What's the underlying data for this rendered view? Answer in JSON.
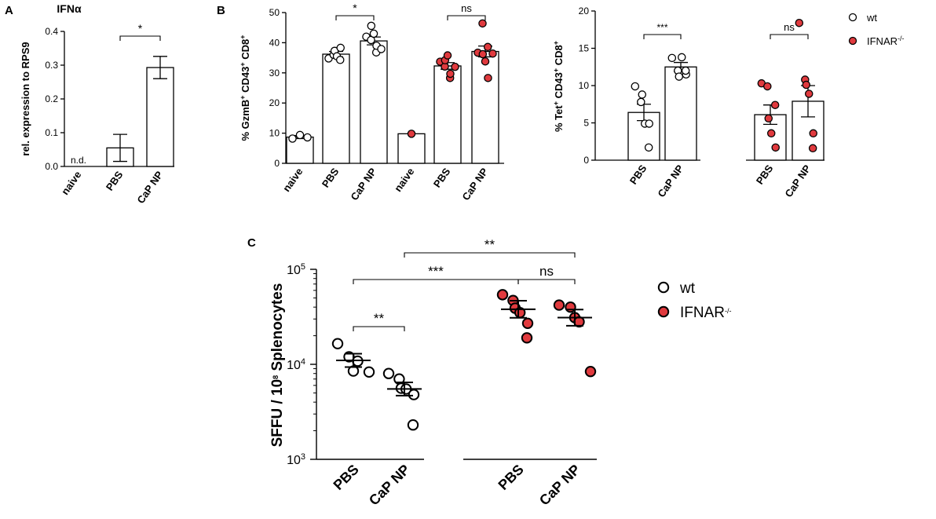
{
  "chart_data": [
    {
      "panel": "A",
      "type": "bar",
      "title": "IFNα",
      "ylabel": "rel. expression to RPS9",
      "ylim": [
        0,
        0.4
      ],
      "yticks": [
        "0.0",
        "0.1",
        "0.2",
        "0.3",
        "0.4"
      ],
      "categories": [
        "naive",
        "PBS",
        "CaP NP"
      ],
      "values": [
        null,
        0.055,
        0.293
      ],
      "errors": [
        null,
        0.04,
        0.033
      ],
      "annotations": [
        {
          "label": "n.d.",
          "at": "naive"
        }
      ],
      "significance": [
        {
          "from": "PBS",
          "to": "CaP NP",
          "label": "*"
        }
      ]
    },
    {
      "panel": "B",
      "type": "bar",
      "ylabel_parts": [
        "% GzmB",
        "+",
        " CD43",
        "+",
        " CD8",
        "+"
      ],
      "ylim": [
        0,
        50
      ],
      "yticks": [
        "0",
        "10",
        "20",
        "30",
        "40",
        "50"
      ],
      "categories": [
        "naive",
        "PBS",
        "CaP NP",
        "naive",
        "PBS",
        "CaP NP"
      ],
      "groups": [
        "wt",
        "wt",
        "wt",
        "IFNAR-/-",
        "IFNAR-/-",
        "IFNAR-/-"
      ],
      "values": [
        8.7,
        36.2,
        40.6,
        9.8,
        32.3,
        37.1
      ],
      "errors": [
        0.5,
        0.9,
        1.3,
        0,
        1.1,
        1.8
      ],
      "points": [
        [
          8.2,
          9.4,
          8.6
        ],
        [
          34.8,
          36.0,
          37.3,
          35.5,
          38.3,
          34.3
        ],
        [
          42.0,
          40.9,
          45.6,
          43.0,
          36.8,
          39.0,
          37.9
        ],
        [
          9.8
        ],
        [
          33.7,
          32.1,
          34.2,
          35.8,
          28.3,
          29.7,
          32.0
        ],
        [
          36.7,
          46.4,
          36.2,
          33.8,
          38.6,
          28.3,
          36.4
        ]
      ],
      "significance": [
        {
          "from": 1,
          "to": 2,
          "label": "*"
        },
        {
          "from": 4,
          "to": 5,
          "label": "ns"
        }
      ]
    },
    {
      "panel": "B2",
      "type": "bar",
      "ylabel_parts": [
        "% Tet",
        "+",
        " CD43",
        "+",
        " CD8",
        "+"
      ],
      "ylim": [
        0,
        20
      ],
      "yticks": [
        "0",
        "5",
        "10",
        "15",
        "20"
      ],
      "categories": [
        "PBS",
        "CaP NP",
        "PBS",
        "CaP NP"
      ],
      "groups": [
        "wt",
        "wt",
        "IFNAR-/-",
        "IFNAR-/-"
      ],
      "values": [
        6.4,
        12.5,
        6.1,
        7.9
      ],
      "errors": [
        1.1,
        0.6,
        1.3,
        2.1
      ],
      "points": [
        [
          9.9,
          7.8,
          8.8,
          4.9,
          4.9,
          1.7
        ],
        [
          13.7,
          12.0,
          11.2,
          13.8,
          11.5,
          12.0
        ],
        [
          10.3,
          9.9,
          5.6,
          3.6,
          1.7,
          7.4
        ],
        [
          18.4,
          10.8,
          10.1,
          8.9,
          3.6,
          1.6
        ]
      ],
      "significance": [
        {
          "from": 0,
          "to": 1,
          "label": "***"
        },
        {
          "from": 2,
          "to": 3,
          "label": "ns"
        }
      ],
      "legend": [
        {
          "label": "wt",
          "color": "#ffffff"
        },
        {
          "label_parts": [
            "IFNAR",
            "-/-"
          ],
          "color": "#e03a3e"
        }
      ]
    },
    {
      "panel": "C",
      "type": "scatter",
      "yscale": "log",
      "ylabel_parts": [
        "SFFU / 10",
        "8",
        " Splenocytes"
      ],
      "ylim": [
        1000,
        100000
      ],
      "yticks": [
        {
          "base": "10",
          "exp": "3"
        },
        {
          "base": "10",
          "exp": "4"
        },
        {
          "base": "10",
          "exp": "5"
        }
      ],
      "categories": [
        "PBS",
        "CaP NP",
        "PBS",
        "CaP NP"
      ],
      "groups": [
        "wt",
        "wt",
        "IFNAR-/-",
        "IFNAR-/-"
      ],
      "means": [
        11000,
        5500,
        38000,
        31000
      ],
      "errors_log": [
        0.07,
        0.07,
        0.09,
        0.085
      ],
      "points": [
        [
          16500,
          12000,
          8500,
          10800,
          8300
        ],
        [
          8000,
          7000,
          5600,
          5500,
          4800,
          2300
        ],
        [
          54000,
          47000,
          39000,
          35000,
          27000,
          19000
        ],
        [
          42000,
          40000,
          31000,
          28000,
          8400
        ]
      ],
      "significance": [
        {
          "from": 0,
          "to": 1,
          "label": "**"
        },
        {
          "from": 0,
          "to": 2,
          "label": "***"
        },
        {
          "from": 2,
          "to": 3,
          "label": "ns"
        },
        {
          "from": 1,
          "to": 3,
          "label": "**"
        }
      ],
      "legend": [
        {
          "label": "wt",
          "color": "#ffffff"
        },
        {
          "label_parts": [
            "IFNAR",
            "-/-"
          ],
          "color": "#e03a3e"
        }
      ]
    }
  ],
  "panel_labels": [
    "A",
    "B",
    "C"
  ],
  "colors": {
    "wt_fill": "#ffffff",
    "ko_fill": "#e03a3e",
    "ink": "#000000"
  }
}
